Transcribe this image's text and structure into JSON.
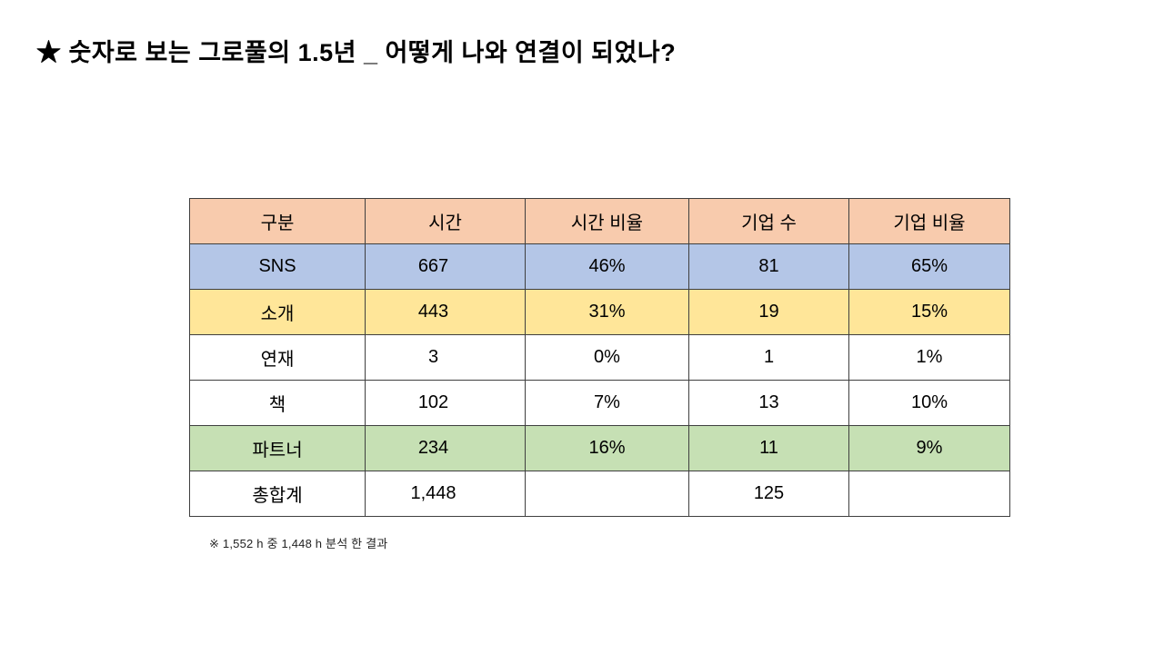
{
  "slide": {
    "title": "★ 숫자로 보는 그로풀의 1.5년 _ 어떻게 나와 연결이 되었나?",
    "footnote": "※ 1,552 h 중 1,448 h 분석 한 결과"
  },
  "colors": {
    "header_bg": "#f8cbad",
    "row_sns_bg": "#b4c6e7",
    "row_intro_bg": "#ffe699",
    "row_partner_bg": "#c6e0b4",
    "row_plain_bg": "#ffffff",
    "border": "#3f3f3f"
  },
  "table": {
    "headers": [
      "구분",
      "시간",
      "시간 비율",
      "기업 수",
      "기업 비율"
    ],
    "rows": [
      {
        "label": "SNS",
        "hours": "667",
        "hours_pct": "46%",
        "companies": "81",
        "companies_pct": "65%",
        "bg": "#b4c6e7"
      },
      {
        "label": "소개",
        "hours": "443",
        "hours_pct": "31%",
        "companies": "19",
        "companies_pct": "15%",
        "bg": "#ffe699"
      },
      {
        "label": "연재",
        "hours": "3",
        "hours_pct": "0%",
        "companies": "1",
        "companies_pct": "1%",
        "bg": "#ffffff"
      },
      {
        "label": "책",
        "hours": "102",
        "hours_pct": "7%",
        "companies": "13",
        "companies_pct": "10%",
        "bg": "#ffffff"
      },
      {
        "label": "파트너",
        "hours": "234",
        "hours_pct": "16%",
        "companies": "11",
        "companies_pct": "9%",
        "bg": "#c6e0b4"
      },
      {
        "label": "총합계",
        "hours": "1,448",
        "hours_pct": "",
        "companies": "125",
        "companies_pct": "",
        "bg": "#ffffff"
      }
    ]
  },
  "chart_data": {
    "type": "table",
    "title": "숫자로 보는 그로풀의 1.5년 _ 어떻게 나와 연결이 되었나?",
    "columns": [
      "구분",
      "시간",
      "시간 비율",
      "기업 수",
      "기업 비율"
    ],
    "rows": [
      [
        "SNS",
        667,
        "46%",
        81,
        "65%"
      ],
      [
        "소개",
        443,
        "31%",
        19,
        "15%"
      ],
      [
        "연재",
        3,
        "0%",
        1,
        "1%"
      ],
      [
        "책",
        102,
        "7%",
        13,
        "10%"
      ],
      [
        "파트너",
        234,
        "16%",
        11,
        "9%"
      ],
      [
        "총합계",
        1448,
        "",
        125,
        ""
      ]
    ],
    "footnote": "※ 1,552 h 중 1,448 h 분석 한 결과"
  }
}
